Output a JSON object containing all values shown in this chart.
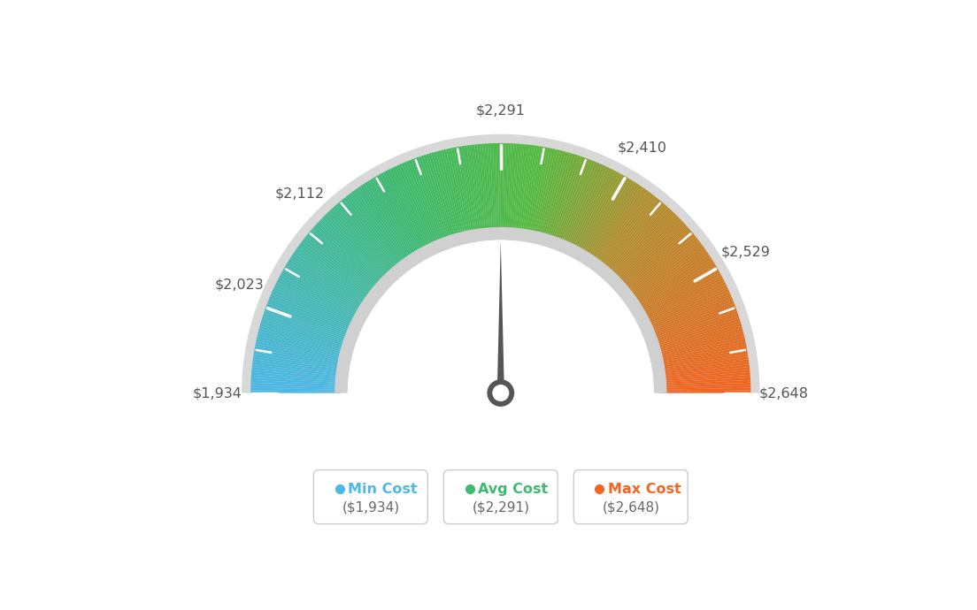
{
  "min_val": 1934,
  "max_val": 2648,
  "avg_val": 2291,
  "label_data": [
    [
      1934,
      "$1,934"
    ],
    [
      2023,
      "$2,023"
    ],
    [
      2112,
      "$2,112"
    ],
    [
      2291,
      "$2,291"
    ],
    [
      2410,
      "$2,410"
    ],
    [
      2529,
      "$2,529"
    ],
    [
      2648,
      "$2,648"
    ]
  ],
  "legend_min_label": "Min Cost",
  "legend_avg_label": "Avg Cost",
  "legend_max_label": "Max Cost",
  "legend_min_value": "($1,934)",
  "legend_avg_value": "($2,291)",
  "legend_max_value": "($2,648)",
  "color_min": "#4db8e8",
  "color_avg": "#3dba6e",
  "color_max": "#f26522",
  "bg_color": "#ffffff",
  "needle_color": "#555555",
  "label_color": "#555555",
  "gray_outer": "#cccccc",
  "gray_inner": "#d5d5d5"
}
